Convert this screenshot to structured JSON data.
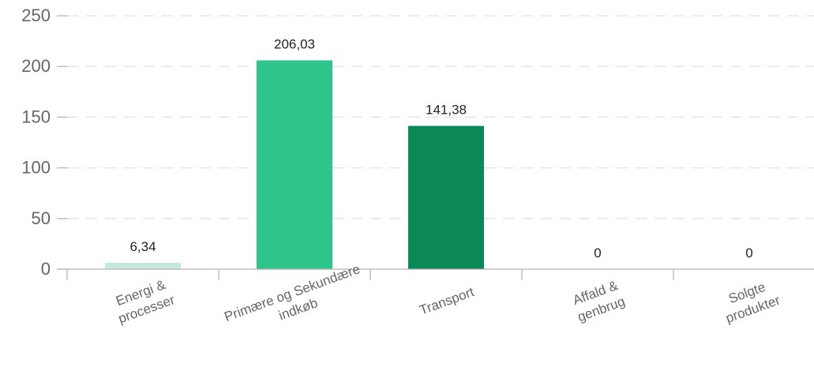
{
  "chart_data": {
    "type": "bar",
    "categories": [
      [
        "Energi &",
        "processer"
      ],
      [
        "Primære og Sekundære",
        "indkøb"
      ],
      [
        "Transport"
      ],
      [
        "Affald &",
        "genbrug"
      ],
      [
        "Solgte",
        "produkter"
      ]
    ],
    "values": [
      6.34,
      206.03,
      141.38,
      0,
      0
    ],
    "value_labels": [
      "6,34",
      "206,03",
      "141,38",
      "0",
      "0"
    ],
    "bar_colors": [
      "#c6e8dc",
      "#2ec48a",
      "#0b8a57",
      "#2ec48a",
      "#2ec48a"
    ],
    "ylim": [
      0,
      250
    ],
    "y_ticks": [
      0,
      50,
      100,
      150,
      200,
      250
    ],
    "title": "",
    "xlabel": "",
    "ylabel": "",
    "grid": true,
    "legend": "none"
  }
}
